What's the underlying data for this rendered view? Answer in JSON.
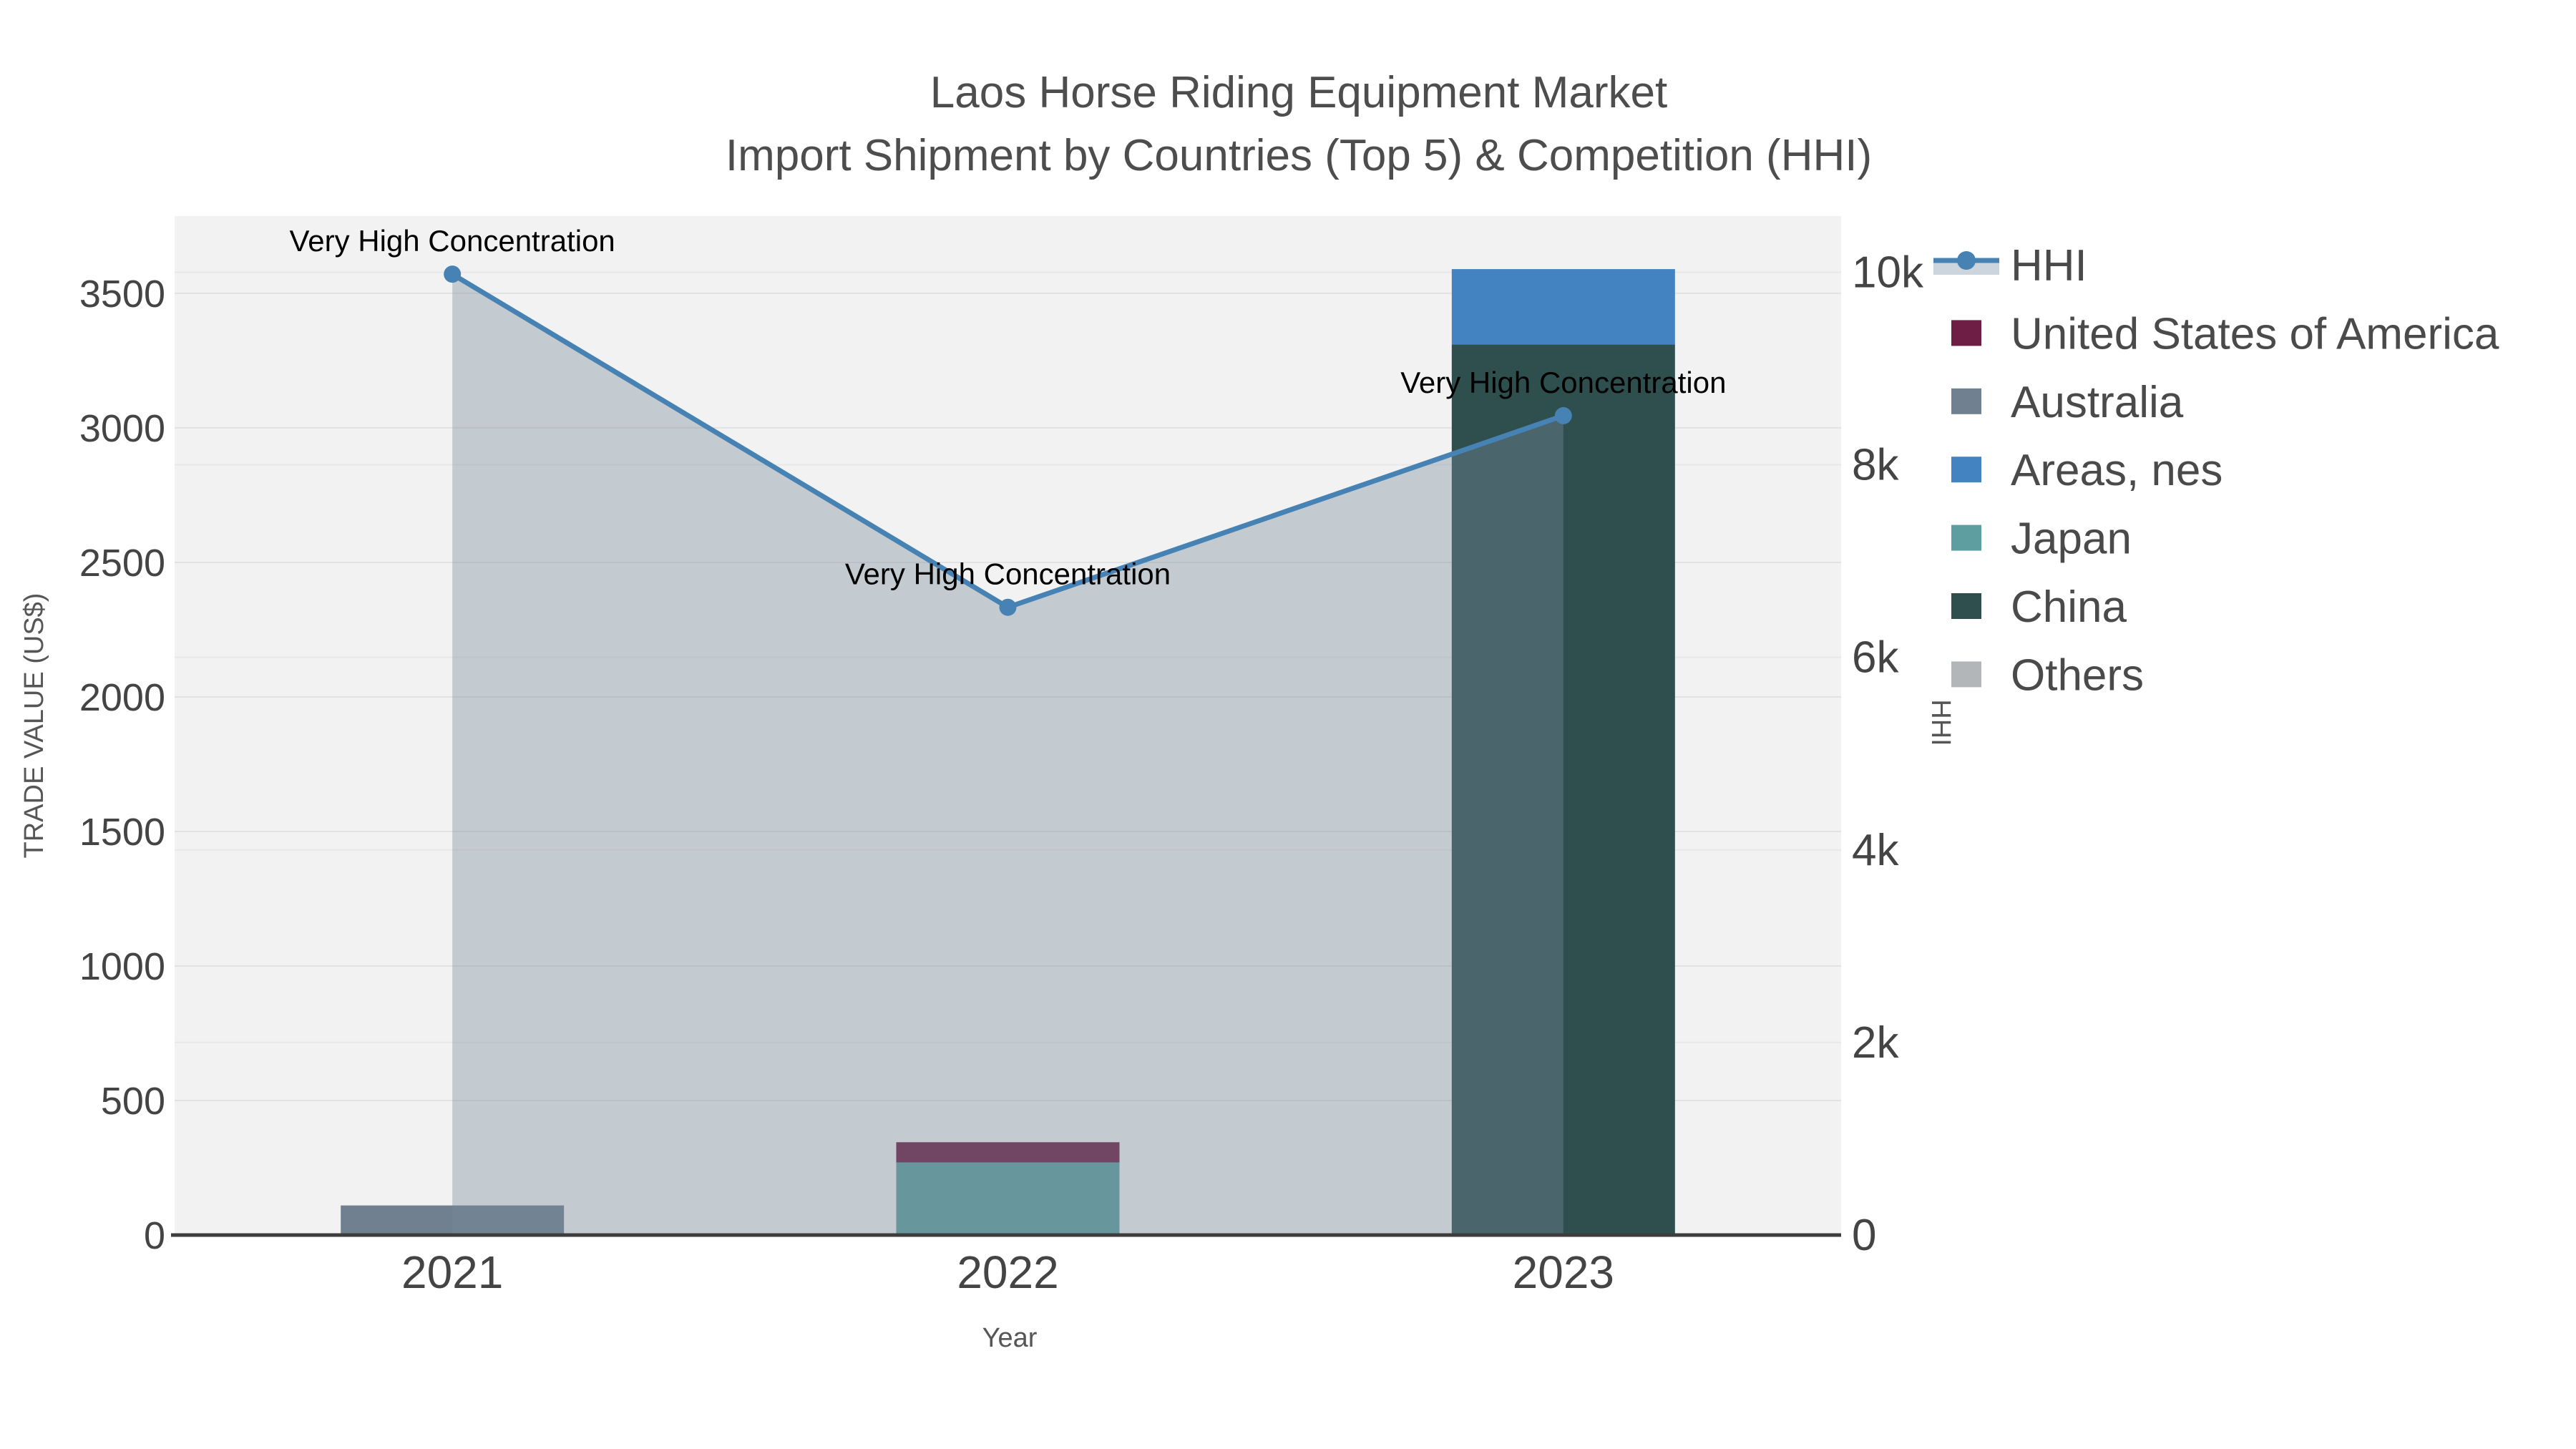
{
  "page": {
    "background": "#ffffff",
    "plot_background": "#f2f2f2",
    "grid_color": "#e2e2e4",
    "axis_line_color": "#3d3d3d"
  },
  "title": {
    "line1": "Laos Horse Riding Equipment Market",
    "line2": "Import Shipment by Countries (Top 5) & Competition (HHI)",
    "color": "#4d4d4d"
  },
  "axes": {
    "x": {
      "title": "Year",
      "categories": [
        "2021",
        "2022",
        "2023"
      ]
    },
    "y_left": {
      "title": "TRADE VALUE (US$)",
      "tick_values": [
        0,
        500,
        1000,
        1500,
        2000,
        2500,
        3000,
        3500
      ],
      "tick_labels": [
        "0",
        "500",
        "1000",
        "1500",
        "2000",
        "2500",
        "3000",
        "3500"
      ],
      "max": 3787
    },
    "y_right": {
      "title": "HHI",
      "tick_values": [
        0,
        2000,
        4000,
        6000,
        8000,
        10000
      ],
      "tick_labels": [
        "0",
        "2k",
        "4k",
        "6k",
        "8k",
        "10k"
      ],
      "max": 10583
    }
  },
  "legend": {
    "position": "right",
    "order": [
      "HHI",
      "United States of America",
      "Australia",
      "Areas, nes",
      "Japan",
      "China",
      "Others"
    ],
    "hhi_band_color": "#ccd4dd"
  },
  "annotation": {
    "text": "Very High Concentration",
    "color": "#000000"
  },
  "chart_data": {
    "type": "combo-stacked-bar-line",
    "title": "Laos Horse Riding Equipment Market Import Shipment by Countries (Top 5) & Competition (HHI)",
    "categories": [
      "2021",
      "2022",
      "2023"
    ],
    "xlabel": "Year",
    "ylabel": "TRADE VALUE (US$)",
    "ylabel_right": "HHI",
    "ylim_left": [
      0,
      3787
    ],
    "ylim_right": [
      0,
      10583
    ],
    "grid": true,
    "legend_position": "right",
    "series": [
      {
        "name": "United States of America",
        "type": "bar",
        "color": "#6e1e45",
        "values": [
          0,
          75,
          0
        ]
      },
      {
        "name": "Australia",
        "type": "bar",
        "color": "#708090",
        "values": [
          110,
          0,
          0
        ]
      },
      {
        "name": "Areas, nes",
        "type": "bar",
        "color": "#4383c1",
        "values": [
          0,
          0,
          280
        ]
      },
      {
        "name": "Japan",
        "type": "bar",
        "color": "#5f9ea0",
        "values": [
          0,
          270,
          0
        ]
      },
      {
        "name": "China",
        "type": "bar",
        "color": "#2f4f4f",
        "values": [
          0,
          0,
          3310
        ]
      },
      {
        "name": "Others",
        "type": "bar",
        "color": "#b2b6b8",
        "values": [
          0,
          0,
          0
        ]
      },
      {
        "name": "HHI",
        "type": "line",
        "axis": "right",
        "color": "#4682b4",
        "fill": "rgba(119,136,153,0.38)",
        "values": [
          9980,
          6520,
          8510
        ]
      }
    ],
    "stack_note": "bars stacked largest-at-bottom per year",
    "annotations": [
      {
        "x": "2021",
        "text": "Very High Concentration"
      },
      {
        "x": "2022",
        "text": "Very High Concentration"
      },
      {
        "x": "2023",
        "text": "Very High Concentration"
      }
    ]
  }
}
